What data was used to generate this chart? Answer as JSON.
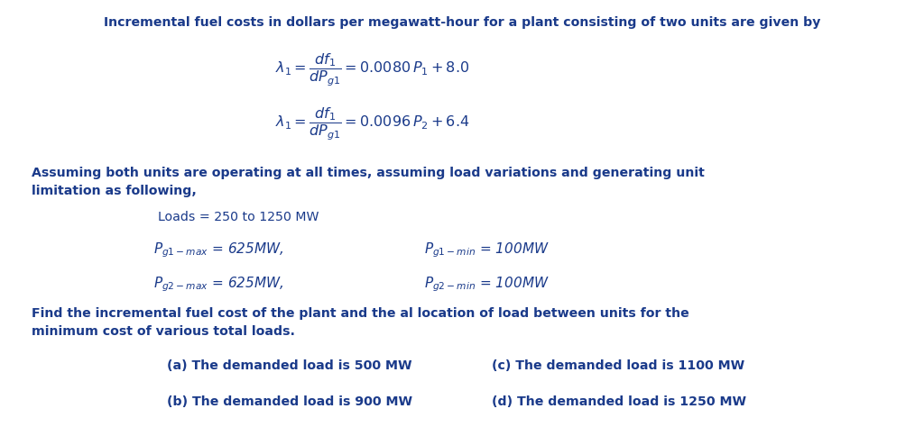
{
  "bg_color": "#ffffff",
  "text_color": "#1a3a8a",
  "title_line": "Incremental fuel costs in dollars per megawatt-hour for a plant consisting of two units are given by",
  "eq1": "$\\lambda_1 = \\dfrac{df_1}{dP_{g1}} = 0.0080\\, P_1 + 8.0$",
  "eq2": "$\\lambda_1 = \\dfrac{df_1}{dP_{g1}} = 0.0096\\, P_2 + 6.4$",
  "assume1": "Assuming both units are operating at all times, assuming load variations and generating unit",
  "assume2": "limitation as following,",
  "loads": "Loads = 250 to 1250 MW",
  "pg1max": "$P_{g1-max}$ = 625MW,",
  "pg1min": "$P_{g1-min}$ = 100MW",
  "pg2max": "$P_{g2-max}$ = 625MW,",
  "pg2min": "$P_{g2-min}$ = 100MW",
  "find1": "Find the incremental fuel cost of the plant and the al location of load between units for the",
  "find2": "minimum cost of various total loads.",
  "qa": "(a) The demanded load is 500 MW",
  "qb": "(b) The demanded load is 900 MW",
  "qc": "(c) The demanded load is 1100 MW",
  "qd": "(d) The demanded load is 1250 MW"
}
